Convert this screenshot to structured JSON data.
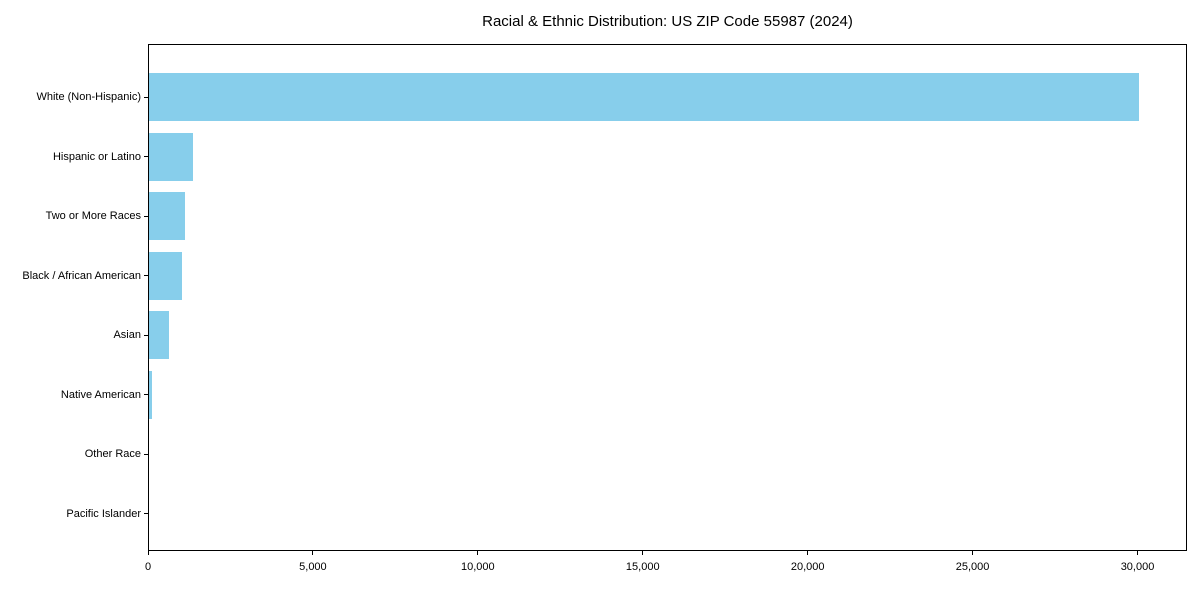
{
  "page": {
    "background_color": "#ffffff",
    "text_color": "#000000"
  },
  "chart_data": {
    "type": "bar",
    "orientation": "horizontal",
    "title": "Racial & Ethnic Distribution: US ZIP Code 55987 (2024)",
    "xlabel": "",
    "ylabel": "",
    "categories": [
      "White (Non-Hispanic)",
      "Hispanic or Latino",
      "Two or More Races",
      "Black / African American",
      "Asian",
      "Native American",
      "Other Race",
      "Pacific Islander"
    ],
    "values": [
      30000,
      1340,
      1100,
      1000,
      600,
      90,
      0,
      0
    ],
    "xlim": [
      0,
      31500
    ],
    "xticks": {
      "values": [
        0,
        5000,
        10000,
        15000,
        20000,
        25000,
        30000
      ],
      "labels": [
        "0",
        "5,000",
        "10,000",
        "15,000",
        "20,000",
        "25,000",
        "30,000"
      ]
    },
    "grid": false,
    "legend": null,
    "bar_color": "#87CEEB",
    "axis_color": "#000000",
    "text_color": "#000000"
  }
}
